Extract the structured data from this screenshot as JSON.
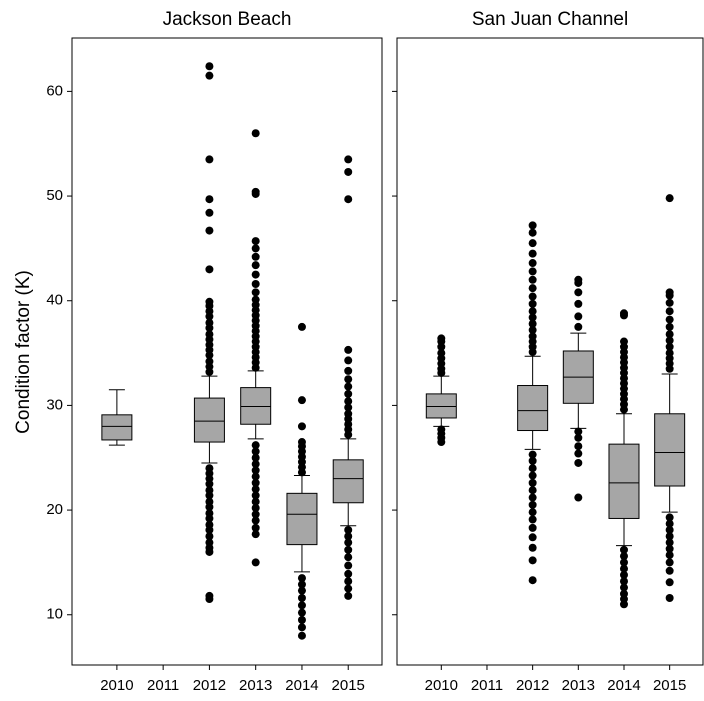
{
  "chart_data": [
    {
      "type": "box",
      "title": "Jackson Beach",
      "y_label": "Condition factor (K)",
      "box_color": "#a6a6a6",
      "point_color": "#000000",
      "categories": [
        "2010",
        "2011",
        "2012",
        "2013",
        "2014",
        "2015"
      ],
      "ylim": [
        5.2,
        65.1
      ],
      "yticks": [
        10,
        20,
        30,
        40,
        50,
        60
      ],
      "boxes": [
        {
          "low": 26.2,
          "q1": 26.7,
          "median": 28.0,
          "q3": 29.1,
          "high": 31.5,
          "outliers": []
        },
        null,
        {
          "low": 24.5,
          "q1": 26.5,
          "median": 28.5,
          "q3": 30.7,
          "high": 32.8,
          "outliers": [
            11.5,
            11.8,
            16,
            16.4,
            16.9,
            17.5,
            18.1,
            18.6,
            19.2,
            19.7,
            20.3,
            20.8,
            21.4,
            21.9,
            22.5,
            23,
            23.5,
            24,
            33.2,
            33.7,
            34.2,
            34.8,
            35.3,
            35.8,
            36.3,
            36.8,
            37.4,
            37.9,
            38.5,
            39,
            39.5,
            39.9,
            43,
            46.7,
            48.4,
            49.7,
            53.5,
            61.5,
            62.4
          ]
        },
        {
          "low": 26.8,
          "q1": 28.2,
          "median": 29.9,
          "q3": 31.7,
          "high": 33.3,
          "outliers": [
            15,
            17.7,
            18.3,
            19,
            19.6,
            20.2,
            20.8,
            21.4,
            22,
            22.6,
            23.2,
            23.8,
            24.4,
            25,
            25.6,
            26.2,
            33.6,
            34.1,
            34.6,
            35.1,
            35.6,
            36.1,
            36.6,
            37.1,
            37.6,
            38.1,
            38.6,
            39.1,
            39.6,
            40.1,
            40.8,
            41.6,
            42.5,
            43.4,
            44.2,
            45,
            45.7,
            50.2,
            50.4,
            56
          ]
        },
        {
          "low": 14.1,
          "q1": 16.7,
          "median": 19.6,
          "q3": 21.6,
          "high": 23.3,
          "outliers": [
            8,
            8.8,
            9.5,
            10.2,
            10.9,
            11.6,
            12.3,
            12.9,
            13.5,
            23.6,
            24.1,
            24.6,
            25.1,
            25.6,
            26.1,
            26.5,
            28,
            30.5,
            37.5
          ]
        },
        {
          "low": 18.5,
          "q1": 20.7,
          "median": 23.0,
          "q3": 24.8,
          "high": 26.8,
          "outliers": [
            11.8,
            12.5,
            13.2,
            13.9,
            14.7,
            15.5,
            16.2,
            16.9,
            17.5,
            18.1,
            27.2,
            27.7,
            28.2,
            28.7,
            29.2,
            29.8,
            30.4,
            31.1,
            31.8,
            32.5,
            33.3,
            34.3,
            35.3,
            49.7,
            52.3,
            53.5
          ]
        }
      ]
    },
    {
      "type": "box",
      "title": "San Juan Channel",
      "box_color": "#a6a6a6",
      "point_color": "#000000",
      "categories": [
        "2010",
        "2011",
        "2012",
        "2013",
        "2014",
        "2015"
      ],
      "ylim": [
        5.2,
        65.1
      ],
      "yticks": [
        10,
        20,
        30,
        40,
        50,
        60
      ],
      "boxes": [
        {
          "low": 28.0,
          "q1": 28.8,
          "median": 29.9,
          "q3": 31.1,
          "high": 32.8,
          "outliers": [
            26.5,
            26.9,
            27.3,
            27.7,
            33.1,
            33.5,
            34,
            34.5,
            35,
            35.6,
            36.1,
            36.4
          ]
        },
        null,
        {
          "low": 25.8,
          "q1": 27.6,
          "median": 29.5,
          "q3": 31.9,
          "high": 34.7,
          "outliers": [
            13.3,
            15.2,
            16.4,
            17.4,
            18.3,
            19.1,
            19.8,
            20.5,
            21.2,
            21.9,
            22.6,
            23.3,
            24,
            24.7,
            25.3,
            35.1,
            35.6,
            36.1,
            36.6,
            37.2,
            37.8,
            38.4,
            39,
            39.7,
            40.4,
            41.2,
            42,
            42.8,
            43.6,
            44.5,
            45.5,
            46.5,
            47.2
          ]
        },
        {
          "low": 27.8,
          "q1": 30.2,
          "median": 32.7,
          "q3": 35.2,
          "high": 36.9,
          "outliers": [
            21.2,
            24.5,
            25.4,
            26.1,
            26.9,
            27.5,
            37.5,
            38.5,
            39.7,
            40.8,
            41.7,
            42
          ]
        },
        {
          "low": 16.6,
          "q1": 19.2,
          "median": 22.6,
          "q3": 26.3,
          "high": 29.2,
          "outliers": [
            11,
            11.5,
            12,
            12.6,
            13.2,
            13.8,
            14.4,
            15,
            15.6,
            16.2,
            29.6,
            30.1,
            30.6,
            31.1,
            31.6,
            32.1,
            32.6,
            33.1,
            33.6,
            34.1,
            34.6,
            35.1,
            35.6,
            36.1,
            38.6,
            38.8
          ]
        },
        {
          "low": 19.8,
          "q1": 22.3,
          "median": 25.5,
          "q3": 29.2,
          "high": 33.0,
          "outliers": [
            11.6,
            13.1,
            14.2,
            15,
            15.7,
            16.3,
            16.9,
            17.5,
            18.1,
            18.7,
            19.3,
            33.5,
            34,
            34.5,
            35,
            35.6,
            36.2,
            36.8,
            37.5,
            38.2,
            39,
            39.8,
            40.5,
            40.8,
            49.8
          ]
        }
      ]
    }
  ]
}
